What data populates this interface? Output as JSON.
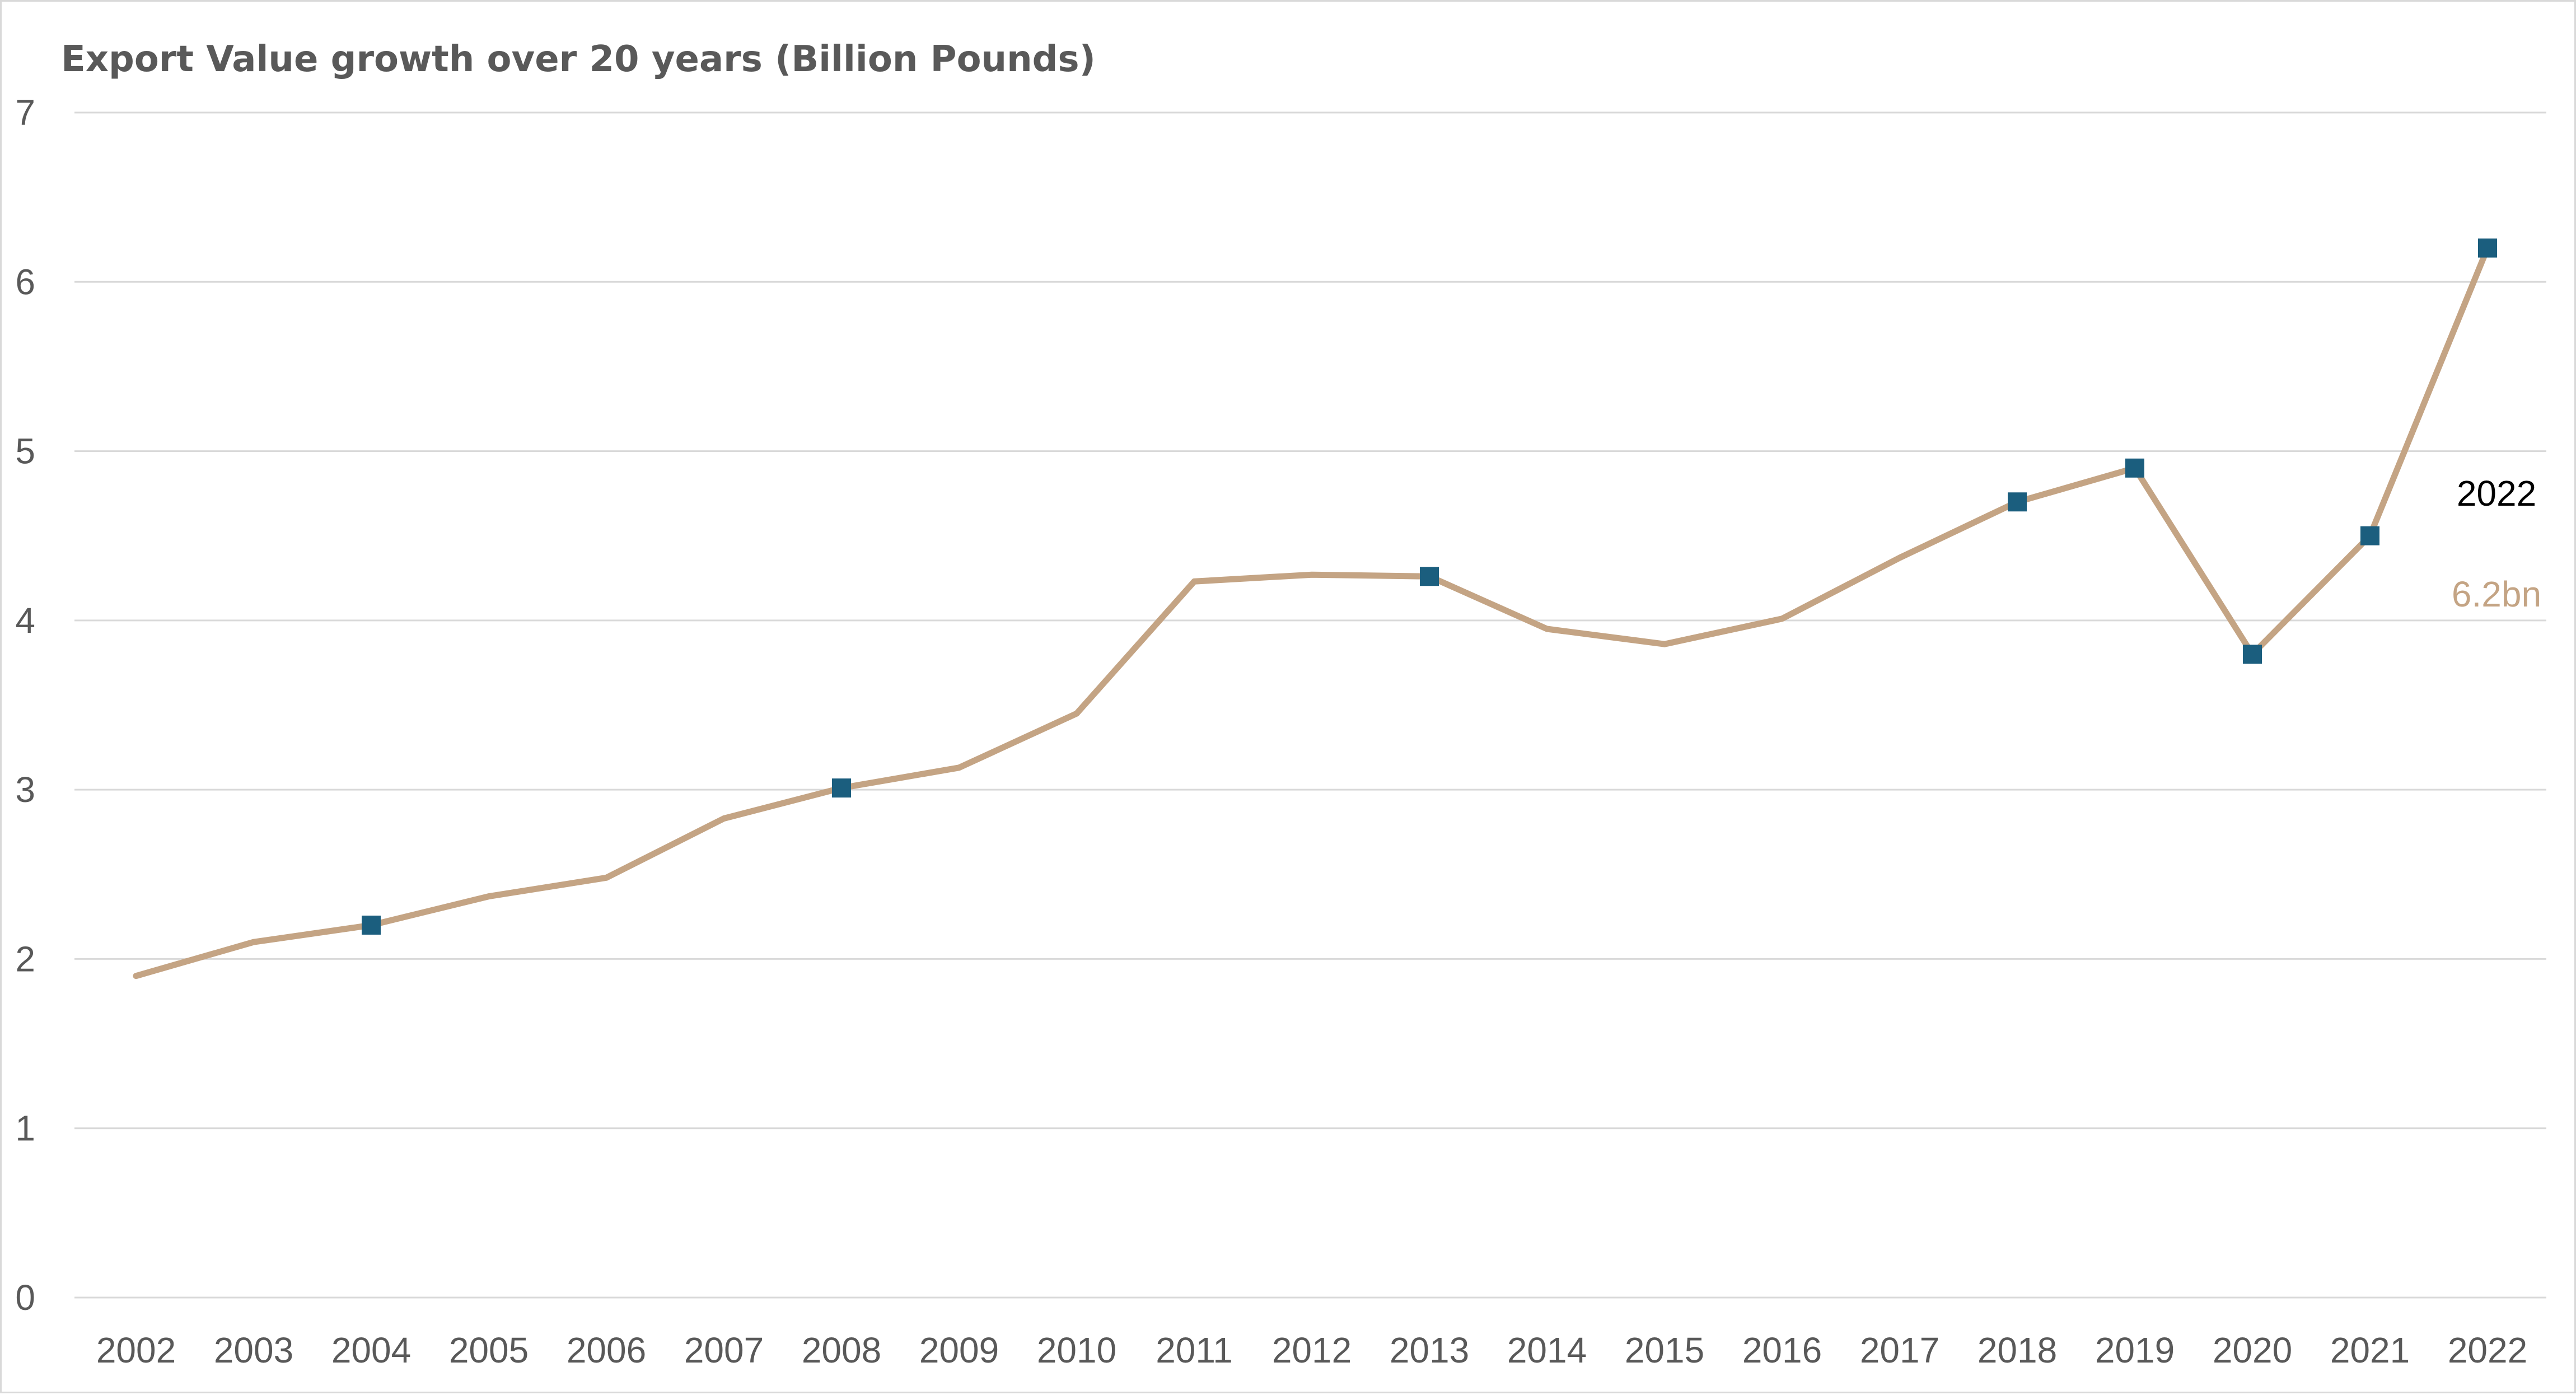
{
  "chart_data": {
    "type": "line",
    "title": "Export Value growth over 20 years (Billion Pounds)",
    "xlabel": "",
    "ylabel": "",
    "x": [
      2002,
      2003,
      2004,
      2005,
      2006,
      2007,
      2008,
      2009,
      2010,
      2011,
      2012,
      2013,
      2014,
      2015,
      2016,
      2017,
      2018,
      2019,
      2020,
      2021,
      2022
    ],
    "series": [
      {
        "values": [
          1.9,
          2.1,
          2.2,
          2.37,
          2.48,
          2.83,
          3.01,
          3.13,
          3.45,
          4.23,
          4.27,
          4.26,
          3.95,
          3.86,
          4.01,
          4.37,
          4.7,
          4.9,
          3.8,
          4.5,
          6.2
        ],
        "marker_x": [
          2004,
          2008,
          2013,
          2018,
          2019,
          2020,
          2021,
          2022
        ]
      }
    ],
    "ylim": [
      0,
      7
    ],
    "yticks": [
      0,
      1,
      2,
      3,
      4,
      5,
      6,
      7
    ],
    "grid": true,
    "legend": "none",
    "annotation": {
      "year": "2022",
      "value": "6.2bn"
    },
    "colors": {
      "line": "#c4a484",
      "marker": "#1b5e7e",
      "grid": "#d9d9d9",
      "axis_text": "#595959",
      "value_label": "#c4a484"
    }
  }
}
